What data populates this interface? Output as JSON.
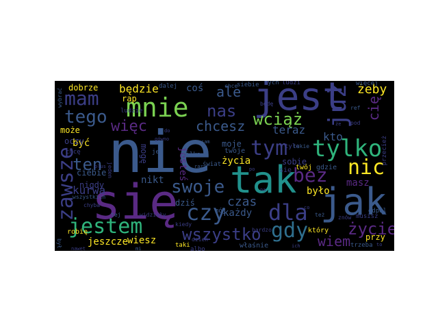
{
  "cloud": {
    "colors": {
      "background": "#000000",
      "purple": "#5a2a84",
      "darkviolet": "#472f7d",
      "indigo": "#3b3e86",
      "blue": "#3b5a8c",
      "steel": "#2f6f8e",
      "teal": "#21918c",
      "green": "#2fb47c",
      "lime": "#7ad151",
      "yellow": "#d8e219",
      "gold": "#fde725"
    },
    "words": [
      {
        "id": "nie",
        "text": "nie"
      },
      {
        "id": "sie",
        "text": "się"
      },
      {
        "id": "jest",
        "text": "jest"
      },
      {
        "id": "tak",
        "text": "tak"
      },
      {
        "id": "jak",
        "text": "jak"
      },
      {
        "id": "mnie",
        "text": "mnie"
      },
      {
        "id": "tylko",
        "text": "tylko"
      },
      {
        "id": "juz",
        "text": "już"
      },
      {
        "id": "jestem",
        "text": "jestem"
      },
      {
        "id": "czy",
        "text": "czy"
      },
      {
        "id": "dla",
        "text": "dla"
      },
      {
        "id": "tym",
        "text": "tym"
      },
      {
        "id": "mam",
        "text": "mam"
      },
      {
        "id": "zawsze",
        "text": "zawsze"
      },
      {
        "id": "wszystko",
        "text": "wszystko"
      },
      {
        "id": "gdy",
        "text": "gdy"
      },
      {
        "id": "bez",
        "text": "bez"
      },
      {
        "id": "nic",
        "text": "nic"
      },
      {
        "id": "tego",
        "text": "tego"
      },
      {
        "id": "swoje",
        "text": "swoje"
      },
      {
        "id": "wciaz",
        "text": "wciąż"
      },
      {
        "id": "chcesz",
        "text": "chcesz"
      },
      {
        "id": "ten",
        "text": "ten"
      },
      {
        "id": "zycie",
        "text": "życie"
      },
      {
        "id": "wiem",
        "text": "wiem"
      },
      {
        "id": "nas",
        "text": "nas"
      },
      {
        "id": "wiec",
        "text": "więc"
      },
      {
        "id": "zycia",
        "text": "życia"
      },
      {
        "id": "czas",
        "text": "czas"
      },
      {
        "id": "kurwa",
        "text": "kurwa"
      },
      {
        "id": "ale",
        "text": "ale"
      },
      {
        "id": "zeby",
        "text": "żeby"
      },
      {
        "id": "bedzie",
        "text": "będzie"
      },
      {
        "id": "teraz",
        "text": "teraz"
      },
      {
        "id": "kto",
        "text": "kto"
      },
      {
        "id": "jeszcze",
        "text": "jeszcze"
      },
      {
        "id": "wiesz",
        "text": "wiesz"
      },
      {
        "id": "kazdy",
        "text": "każdy"
      },
      {
        "id": "bylo",
        "text": "było"
      },
      {
        "id": "masz",
        "text": "masz"
      },
      {
        "id": "byc",
        "text": "być"
      },
      {
        "id": "nikt",
        "text": "nikt"
      },
      {
        "id": "dobrze",
        "text": "dobrze"
      },
      {
        "id": "cie",
        "text": "cię"
      },
      {
        "id": "cos",
        "text": "coś"
      },
      {
        "id": "przy",
        "text": "przy"
      },
      {
        "id": "jestes",
        "text": "jesteś"
      },
      {
        "id": "rap",
        "text": "rap"
      },
      {
        "id": "sobie",
        "text": "sobie"
      },
      {
        "id": "moje",
        "text": "moje"
      },
      {
        "id": "ciebie",
        "text": "ciebie"
      },
      {
        "id": "moze",
        "text": "może"
      },
      {
        "id": "nigdy",
        "text": "nigdy"
      },
      {
        "id": "dzis",
        "text": "dziś"
      },
      {
        "id": "oczy",
        "text": "oczy"
      },
      {
        "id": "moge",
        "text": "mogę"
      },
      {
        "id": "ktory",
        "text": "który"
      },
      {
        "id": "twoje",
        "text": "twoje"
      },
      {
        "id": "twoj",
        "text": "twój"
      },
      {
        "id": "gdzie",
        "text": "gdzie"
      },
      {
        "id": "wlasnie",
        "text": "właśnie"
      },
      {
        "id": "sie2",
        "text": "się"
      },
      {
        "id": "swiat",
        "text": "świat"
      },
      {
        "id": "robie",
        "text": "robię"
      },
      {
        "id": "odpal",
        "text": "odpal"
      },
      {
        "id": "musisz",
        "text": "musisz"
      },
      {
        "id": "trzeba",
        "text": "trzeba"
      },
      {
        "id": "przeciez",
        "text": "przecież"
      },
      {
        "id": "kilka",
        "text": "kilka"
      },
      {
        "id": "taki",
        "text": "taki"
      },
      {
        "id": "dalej",
        "text": "dalej"
      },
      {
        "id": "siebie",
        "text": "siebie"
      },
      {
        "id": "tych",
        "text": "tych"
      },
      {
        "id": "ludzi",
        "text": "ludzi"
      },
      {
        "id": "ludzie",
        "text": "ludzie"
      },
      {
        "id": "chce",
        "text": "chcę"
      },
      {
        "id": "tyle",
        "text": "tyle"
      },
      {
        "id": "wszystkich",
        "text": "wszystkich"
      },
      {
        "id": "jej",
        "text": "jej"
      },
      {
        "id": "wiecej",
        "text": "więcej"
      },
      {
        "id": "moj",
        "text": "mój"
      },
      {
        "id": "albo",
        "text": "albo"
      },
      {
        "id": "dzien",
        "text": "dzień"
      },
      {
        "id": "wybrac",
        "text": "wybrać"
      },
      {
        "id": "znow",
        "text": "znów"
      },
      {
        "id": "bede",
        "text": "będę"
      },
      {
        "id": "pod",
        "text": "pod"
      },
      {
        "id": "ref",
        "text": "ref"
      },
      {
        "id": "tej",
        "text": "tej"
      },
      {
        "id": "takie",
        "text": "takie"
      },
      {
        "id": "tez",
        "text": "też"
      },
      {
        "id": "bardzo",
        "text": "bardzo"
      },
      {
        "id": "widzialy",
        "text": "widziały"
      },
      {
        "id": "kiedy",
        "text": "kiedy"
      },
      {
        "id": "chce2",
        "text": "chce"
      },
      {
        "id": "chyba",
        "text": "chyba"
      },
      {
        "id": "byl",
        "text": "był"
      },
      {
        "id": "gowno",
        "text": "gówno"
      },
      {
        "id": "jeden",
        "text": "jeden"
      },
      {
        "id": "plus",
        "text": "plus"
      },
      {
        "id": "nawet",
        "text": "nawet"
      },
      {
        "id": "raz",
        "text": "raz"
      },
      {
        "id": "sam",
        "text": "sam"
      },
      {
        "id": "ich",
        "text": "ich"
      },
      {
        "id": "mi",
        "text": "mi"
      },
      {
        "id": "to",
        "text": "to"
      },
      {
        "id": "ze",
        "text": "że"
      },
      {
        "id": "co",
        "text": "co"
      },
      {
        "id": "na",
        "text": "na"
      },
      {
        "id": "do",
        "text": "do"
      },
      {
        "id": "po",
        "text": "po"
      }
    ]
  }
}
